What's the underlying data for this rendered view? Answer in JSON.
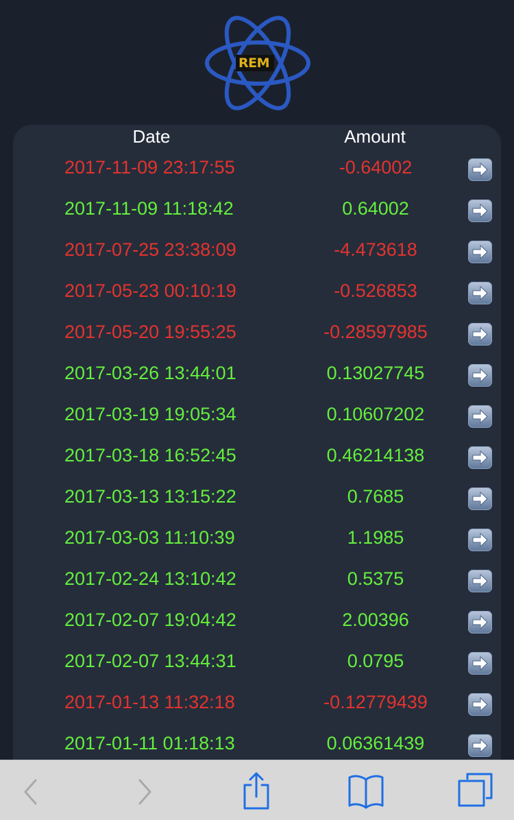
{
  "logo": {
    "text": "REM",
    "color": "#2b59c3"
  },
  "table": {
    "headers": {
      "date": "Date",
      "amount": "Amount"
    },
    "rows": [
      {
        "date": "2017-11-09 23:17:55",
        "amount": "-0.64002",
        "sign": "neg"
      },
      {
        "date": "2017-11-09 11:18:42",
        "amount": "0.64002",
        "sign": "pos"
      },
      {
        "date": "2017-07-25 23:38:09",
        "amount": "-4.473618",
        "sign": "neg"
      },
      {
        "date": "2017-05-23 00:10:19",
        "amount": "-0.526853",
        "sign": "neg"
      },
      {
        "date": "2017-05-20 19:55:25",
        "amount": "-0.28597985",
        "sign": "neg"
      },
      {
        "date": "2017-03-26 13:44:01",
        "amount": "0.13027745",
        "sign": "pos"
      },
      {
        "date": "2017-03-19 19:05:34",
        "amount": "0.10607202",
        "sign": "pos"
      },
      {
        "date": "2017-03-18 16:52:45",
        "amount": "0.46214138",
        "sign": "pos"
      },
      {
        "date": "2017-03-13 13:15:22",
        "amount": "0.7685",
        "sign": "pos"
      },
      {
        "date": "2017-03-03 11:10:39",
        "amount": "1.1985",
        "sign": "pos"
      },
      {
        "date": "2017-02-24 13:10:42",
        "amount": "0.5375",
        "sign": "pos"
      },
      {
        "date": "2017-02-07 19:04:42",
        "amount": "2.00396",
        "sign": "pos"
      },
      {
        "date": "2017-02-07 13:44:31",
        "amount": "0.0795",
        "sign": "pos"
      },
      {
        "date": "2017-01-13 11:32:18",
        "amount": "-0.12779439",
        "sign": "neg"
      },
      {
        "date": "2017-01-11 01:18:13",
        "amount": "0.06361439",
        "sign": "pos"
      }
    ],
    "row_action_icon": "right-arrow-icon"
  },
  "colors": {
    "negative": "#e4332e",
    "positive": "#65ef3c",
    "background": "#1b212c",
    "panel": "#252d3b"
  },
  "toolbar": {
    "items": [
      "back-icon",
      "forward-icon",
      "share-icon",
      "bookmarks-icon",
      "tabs-icon"
    ]
  }
}
